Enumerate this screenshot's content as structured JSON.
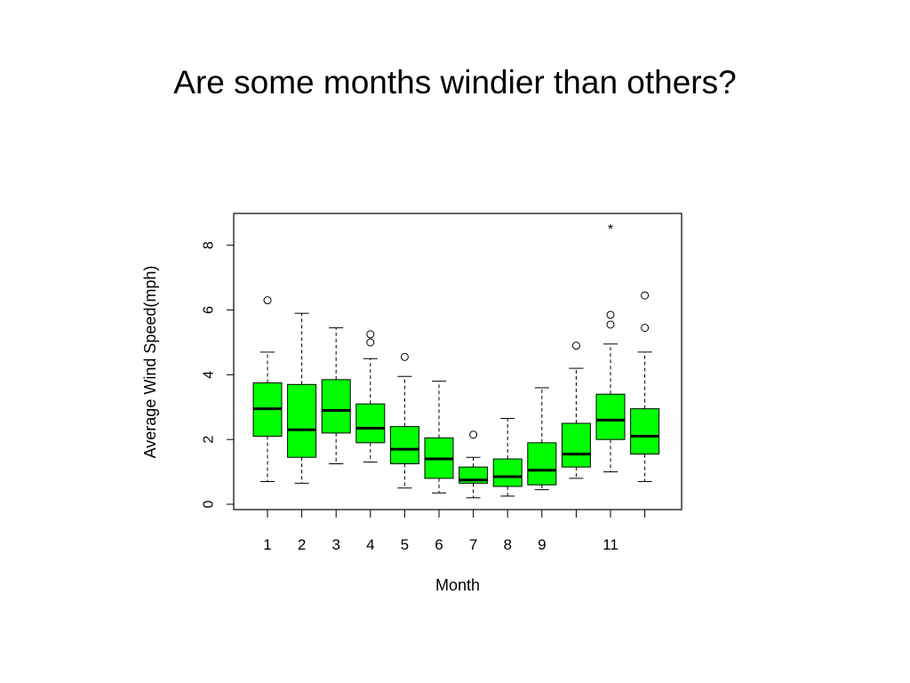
{
  "slide": {
    "title": "Are some months windier than others?"
  },
  "chart_data": {
    "type": "boxplot",
    "xlabel": "Month",
    "ylabel": "Average Wind Speed(mph)",
    "ylim": [
      0,
      9
    ],
    "yticks": [
      "0",
      "2",
      "4",
      "6",
      "8"
    ],
    "xtick_labels": [
      "1",
      "2",
      "3",
      "4",
      "5",
      "6",
      "7",
      "8",
      "9",
      "",
      "11",
      ""
    ],
    "box_color": "#00ff00",
    "grid": false,
    "boxes": [
      {
        "month": "1",
        "low": 0.7,
        "q1": 2.1,
        "median": 2.95,
        "q3": 3.75,
        "high": 4.7,
        "outliers": [
          6.3
        ]
      },
      {
        "month": "2",
        "low": 0.65,
        "q1": 1.45,
        "median": 2.3,
        "q3": 3.7,
        "high": 5.9,
        "outliers": []
      },
      {
        "month": "3",
        "low": 1.25,
        "q1": 2.2,
        "median": 2.9,
        "q3": 3.85,
        "high": 5.45,
        "outliers": []
      },
      {
        "month": "4",
        "low": 1.3,
        "q1": 1.9,
        "median": 2.35,
        "q3": 3.1,
        "high": 4.5,
        "outliers": [
          5.0,
          5.25
        ]
      },
      {
        "month": "5",
        "low": 0.5,
        "q1": 1.25,
        "median": 1.7,
        "q3": 2.4,
        "high": 3.95,
        "outliers": [
          4.55
        ]
      },
      {
        "month": "6",
        "low": 0.35,
        "q1": 0.8,
        "median": 1.4,
        "q3": 2.05,
        "high": 3.8,
        "outliers": []
      },
      {
        "month": "7",
        "low": 0.2,
        "q1": 0.65,
        "median": 0.75,
        "q3": 1.15,
        "high": 1.45,
        "outliers": [
          2.15
        ]
      },
      {
        "month": "8",
        "low": 0.25,
        "q1": 0.55,
        "median": 0.85,
        "q3": 1.4,
        "high": 2.65,
        "outliers": []
      },
      {
        "month": "9",
        "low": 0.45,
        "q1": 0.6,
        "median": 1.05,
        "q3": 1.9,
        "high": 3.6,
        "outliers": []
      },
      {
        "month": "10",
        "low": 0.8,
        "q1": 1.15,
        "median": 1.55,
        "q3": 2.5,
        "high": 4.2,
        "outliers": [
          4.9
        ]
      },
      {
        "month": "11",
        "low": 1.0,
        "q1": 2.0,
        "median": 2.6,
        "q3": 3.4,
        "high": 4.95,
        "outliers": [
          5.55,
          5.85
        ],
        "extreme": [
          8.55
        ]
      },
      {
        "month": "12",
        "low": 0.7,
        "q1": 1.55,
        "median": 2.1,
        "q3": 2.95,
        "high": 4.7,
        "outliers": [
          5.45,
          6.45
        ]
      }
    ]
  }
}
